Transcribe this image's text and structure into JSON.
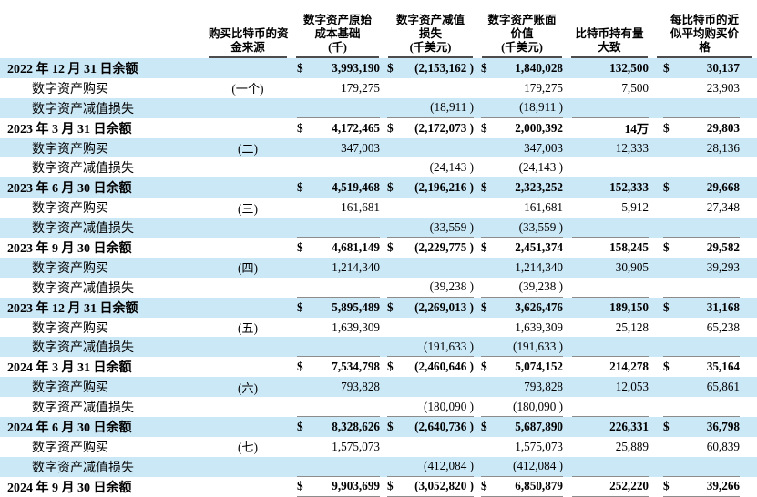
{
  "colors": {
    "row_shade": "#cbe8f7",
    "header_rule": "#4d4d4d",
    "row_rule": "#8c8c8c",
    "text": "#000000"
  },
  "table": {
    "headers": [
      {
        "key": "label",
        "lines": []
      },
      {
        "key": "source",
        "lines": [
          "购买比特币的资",
          "金来源"
        ]
      },
      {
        "key": "cost",
        "lines": [
          "数字资产原始",
          "成本基础",
          "(千)"
        ]
      },
      {
        "key": "imp",
        "lines": [
          "数字资产减值",
          "损失",
          "(千美元)"
        ]
      },
      {
        "key": "carry",
        "lines": [
          "数字资产账面",
          "价值",
          "(千美元)"
        ]
      },
      {
        "key": "hold",
        "lines": [
          "比特币持有量",
          "大致"
        ]
      },
      {
        "key": "price",
        "lines": [
          "每比特币的近",
          "似平均购买价",
          "格"
        ]
      }
    ],
    "rows": [
      {
        "label": "2022 年 12 月 31 日余额",
        "style": "balance",
        "source": "",
        "cost": {
          "sym": "$",
          "val": "3,993,190"
        },
        "imp": {
          "sym": "$",
          "val": "(2,153,162 )"
        },
        "carry": {
          "sym": "$",
          "val": "1,840,028"
        },
        "hold": "132,500",
        "price": {
          "sym": "$",
          "val": "30,137"
        },
        "underline": false
      },
      {
        "label": "数字资产购买",
        "style": "purchase",
        "source": "(一个)",
        "cost": {
          "sym": "",
          "val": "179,275"
        },
        "imp": {
          "sym": "",
          "val": ""
        },
        "carry": {
          "sym": "",
          "val": "179,275"
        },
        "hold": "7,500",
        "price": {
          "sym": "",
          "val": "23,903"
        },
        "underline": false
      },
      {
        "label": "数字资产减值损失",
        "style": "impairment",
        "source": "",
        "cost": {
          "sym": "",
          "val": ""
        },
        "imp": {
          "sym": "",
          "val": "(18,911 )"
        },
        "carry": {
          "sym": "",
          "val": "(18,911 )"
        },
        "hold": "",
        "price": {
          "sym": "",
          "val": ""
        },
        "underline": true
      },
      {
        "label": "2023 年 3 月 31 日余额",
        "style": "balance",
        "source": "",
        "cost": {
          "sym": "$",
          "val": "4,172,465"
        },
        "imp": {
          "sym": "$",
          "val": "(2,172,073 )"
        },
        "carry": {
          "sym": "$",
          "val": "2,000,392"
        },
        "hold": "14万",
        "price": {
          "sym": "$",
          "val": "29,803"
        },
        "underline": false
      },
      {
        "label": "数字资产购买",
        "style": "purchase",
        "source": "(二)",
        "cost": {
          "sym": "",
          "val": "347,003"
        },
        "imp": {
          "sym": "",
          "val": ""
        },
        "carry": {
          "sym": "",
          "val": "347,003"
        },
        "hold": "12,333",
        "price": {
          "sym": "",
          "val": "28,136"
        },
        "underline": false
      },
      {
        "label": "数字资产减值损失",
        "style": "impairment",
        "source": "",
        "cost": {
          "sym": "",
          "val": ""
        },
        "imp": {
          "sym": "",
          "val": "(24,143 )"
        },
        "carry": {
          "sym": "",
          "val": "(24,143 )"
        },
        "hold": "",
        "price": {
          "sym": "",
          "val": ""
        },
        "underline": true
      },
      {
        "label": "2023 年 6 月 30 日余额",
        "style": "balance",
        "source": "",
        "cost": {
          "sym": "$",
          "val": "4,519,468"
        },
        "imp": {
          "sym": "$",
          "val": "(2,196,216 )"
        },
        "carry": {
          "sym": "$",
          "val": "2,323,252"
        },
        "hold": "152,333",
        "price": {
          "sym": "$",
          "val": "29,668"
        },
        "underline": false
      },
      {
        "label": "数字资产购买",
        "style": "purchase",
        "source": "(三)",
        "cost": {
          "sym": "",
          "val": "161,681"
        },
        "imp": {
          "sym": "",
          "val": ""
        },
        "carry": {
          "sym": "",
          "val": "161,681"
        },
        "hold": "5,912",
        "price": {
          "sym": "",
          "val": "27,348"
        },
        "underline": false
      },
      {
        "label": "数字资产减值损失",
        "style": "impairment",
        "source": "",
        "cost": {
          "sym": "",
          "val": ""
        },
        "imp": {
          "sym": "",
          "val": "(33,559 )"
        },
        "carry": {
          "sym": "",
          "val": "(33,559 )"
        },
        "hold": "",
        "price": {
          "sym": "",
          "val": ""
        },
        "underline": true
      },
      {
        "label": "2023 年 9 月 30 日余额",
        "style": "balance",
        "source": "",
        "cost": {
          "sym": "$",
          "val": "4,681,149"
        },
        "imp": {
          "sym": "$",
          "val": "(2,229,775 )"
        },
        "carry": {
          "sym": "$",
          "val": "2,451,374"
        },
        "hold": "158,245",
        "price": {
          "sym": "$",
          "val": "29,582"
        },
        "underline": false
      },
      {
        "label": "数字资产购买",
        "style": "purchase",
        "source": "(四)",
        "cost": {
          "sym": "",
          "val": "1,214,340"
        },
        "imp": {
          "sym": "",
          "val": ""
        },
        "carry": {
          "sym": "",
          "val": "1,214,340"
        },
        "hold": "30,905",
        "price": {
          "sym": "",
          "val": "39,293"
        },
        "underline": false
      },
      {
        "label": "数字资产减值损失",
        "style": "impairment",
        "source": "",
        "cost": {
          "sym": "",
          "val": ""
        },
        "imp": {
          "sym": "",
          "val": "(39,238 )"
        },
        "carry": {
          "sym": "",
          "val": "(39,238 )"
        },
        "hold": "",
        "price": {
          "sym": "",
          "val": ""
        },
        "underline": true
      },
      {
        "label": "2023 年 12 月 31 日余额",
        "style": "balance",
        "source": "",
        "cost": {
          "sym": "$",
          "val": "5,895,489"
        },
        "imp": {
          "sym": "$",
          "val": "(2,269,013 )"
        },
        "carry": {
          "sym": "$",
          "val": "3,626,476"
        },
        "hold": "189,150",
        "price": {
          "sym": "$",
          "val": "31,168"
        },
        "underline": false
      },
      {
        "label": "数字资产购买",
        "style": "purchase",
        "source": "(五)",
        "cost": {
          "sym": "",
          "val": "1,639,309"
        },
        "imp": {
          "sym": "",
          "val": ""
        },
        "carry": {
          "sym": "",
          "val": "1,639,309"
        },
        "hold": "25,128",
        "price": {
          "sym": "",
          "val": "65,238"
        },
        "underline": false
      },
      {
        "label": "数字资产减值损失",
        "style": "impairment",
        "source": "",
        "cost": {
          "sym": "",
          "val": ""
        },
        "imp": {
          "sym": "",
          "val": "(191,633 )"
        },
        "carry": {
          "sym": "",
          "val": "(191,633 )"
        },
        "hold": "",
        "price": {
          "sym": "",
          "val": ""
        },
        "underline": true
      },
      {
        "label": "2024 年 3 月 31 日余额",
        "style": "balance",
        "source": "",
        "cost": {
          "sym": "$",
          "val": "7,534,798"
        },
        "imp": {
          "sym": "$",
          "val": "(2,460,646 )"
        },
        "carry": {
          "sym": "$",
          "val": "5,074,152"
        },
        "hold": "214,278",
        "price": {
          "sym": "$",
          "val": "35,164"
        },
        "underline": false
      },
      {
        "label": "数字资产购买",
        "style": "purchase",
        "source": "(六)",
        "cost": {
          "sym": "",
          "val": "793,828"
        },
        "imp": {
          "sym": "",
          "val": ""
        },
        "carry": {
          "sym": "",
          "val": "793,828"
        },
        "hold": "12,053",
        "price": {
          "sym": "",
          "val": "65,861"
        },
        "underline": false
      },
      {
        "label": "数字资产减值损失",
        "style": "impairment",
        "source": "",
        "cost": {
          "sym": "",
          "val": ""
        },
        "imp": {
          "sym": "",
          "val": "(180,090 )"
        },
        "carry": {
          "sym": "",
          "val": "(180,090 )"
        },
        "hold": "",
        "price": {
          "sym": "",
          "val": ""
        },
        "underline": true
      },
      {
        "label": "2024 年 6 月 30 日余额",
        "style": "balance",
        "source": "",
        "cost": {
          "sym": "$",
          "val": "8,328,626"
        },
        "imp": {
          "sym": "$",
          "val": "(2,640,736 )"
        },
        "carry": {
          "sym": "$",
          "val": "5,687,890"
        },
        "hold": "226,331",
        "price": {
          "sym": "$",
          "val": "36,798"
        },
        "underline": false
      },
      {
        "label": "数字资产购买",
        "style": "purchase",
        "source": "(七)",
        "cost": {
          "sym": "",
          "val": "1,575,073"
        },
        "imp": {
          "sym": "",
          "val": ""
        },
        "carry": {
          "sym": "",
          "val": "1,575,073"
        },
        "hold": "25,889",
        "price": {
          "sym": "",
          "val": "60,839"
        },
        "underline": false
      },
      {
        "label": "数字资产减值损失",
        "style": "impairment",
        "source": "",
        "cost": {
          "sym": "",
          "val": ""
        },
        "imp": {
          "sym": "",
          "val": "(412,084 )"
        },
        "carry": {
          "sym": "",
          "val": "(412,084 )"
        },
        "hold": "",
        "price": {
          "sym": "",
          "val": ""
        },
        "underline": true
      },
      {
        "label": "2024 年 9 月 30 日余额",
        "style": "balance",
        "source": "",
        "cost": {
          "sym": "$",
          "val": "9,903,699"
        },
        "imp": {
          "sym": "$",
          "val": "(3,052,820 )"
        },
        "carry": {
          "sym": "$",
          "val": "6,850,879"
        },
        "hold": "252,220",
        "price": {
          "sym": "$",
          "val": "39,266"
        },
        "underline": true
      }
    ]
  }
}
